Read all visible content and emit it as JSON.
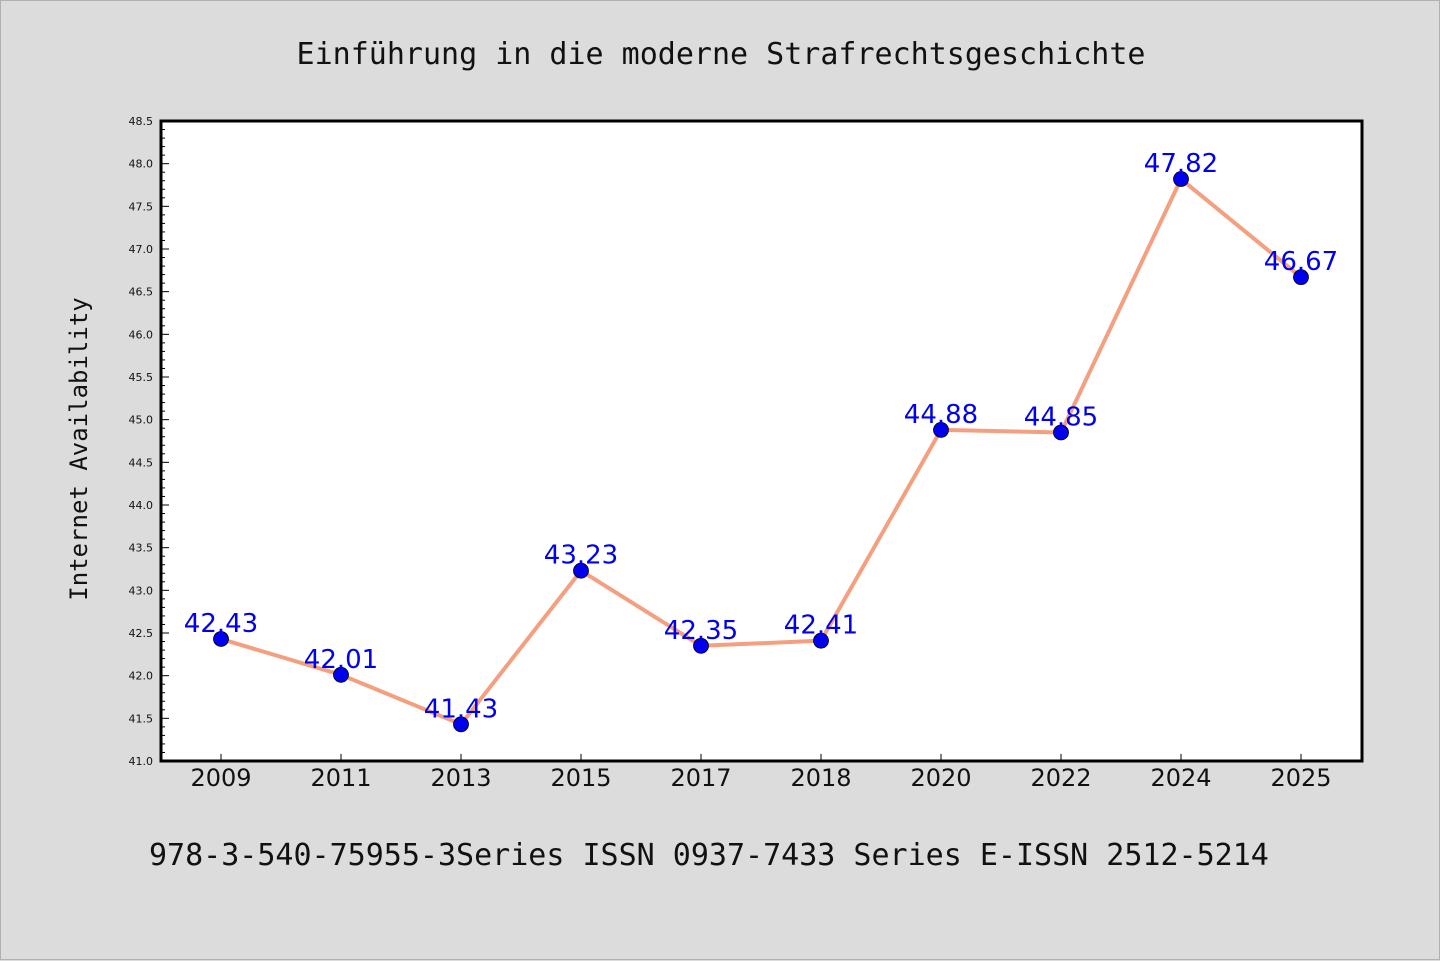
{
  "chart_data": {
    "type": "line",
    "title": "Einführung in die moderne Strafrechtsgeschichte",
    "ylabel": "Internet Availability",
    "xlabel": "",
    "categories": [
      "2009",
      "2011",
      "2013",
      "2015",
      "2017",
      "2018",
      "2020",
      "2022",
      "2024",
      "2025"
    ],
    "values": [
      42.43,
      42.01,
      41.43,
      43.23,
      42.35,
      42.41,
      44.88,
      44.85,
      47.82,
      46.67
    ],
    "data_labels": [
      "42.43",
      "42.01",
      "41.43",
      "43.23",
      "42.35",
      "42.41",
      "44.88",
      "44.85",
      "47.82",
      "46.67"
    ],
    "ylim": [
      41.0,
      48.5
    ],
    "yticks": [
      "41.0",
      "41.5",
      "42.0",
      "42.5",
      "43.0",
      "43.5",
      "44.0",
      "44.5",
      "45.0",
      "45.5",
      "46.0",
      "46.5",
      "47.0",
      "47.5",
      "48.0",
      "48.5"
    ],
    "grid": false,
    "line_color": "#f4a080",
    "marker_color": "#0000ee",
    "label_color": "#0000ee"
  },
  "footer": {
    "text": "978-3-540-75955-3Series ISSN 0937-7433 Series E-ISSN 2512-5214"
  }
}
